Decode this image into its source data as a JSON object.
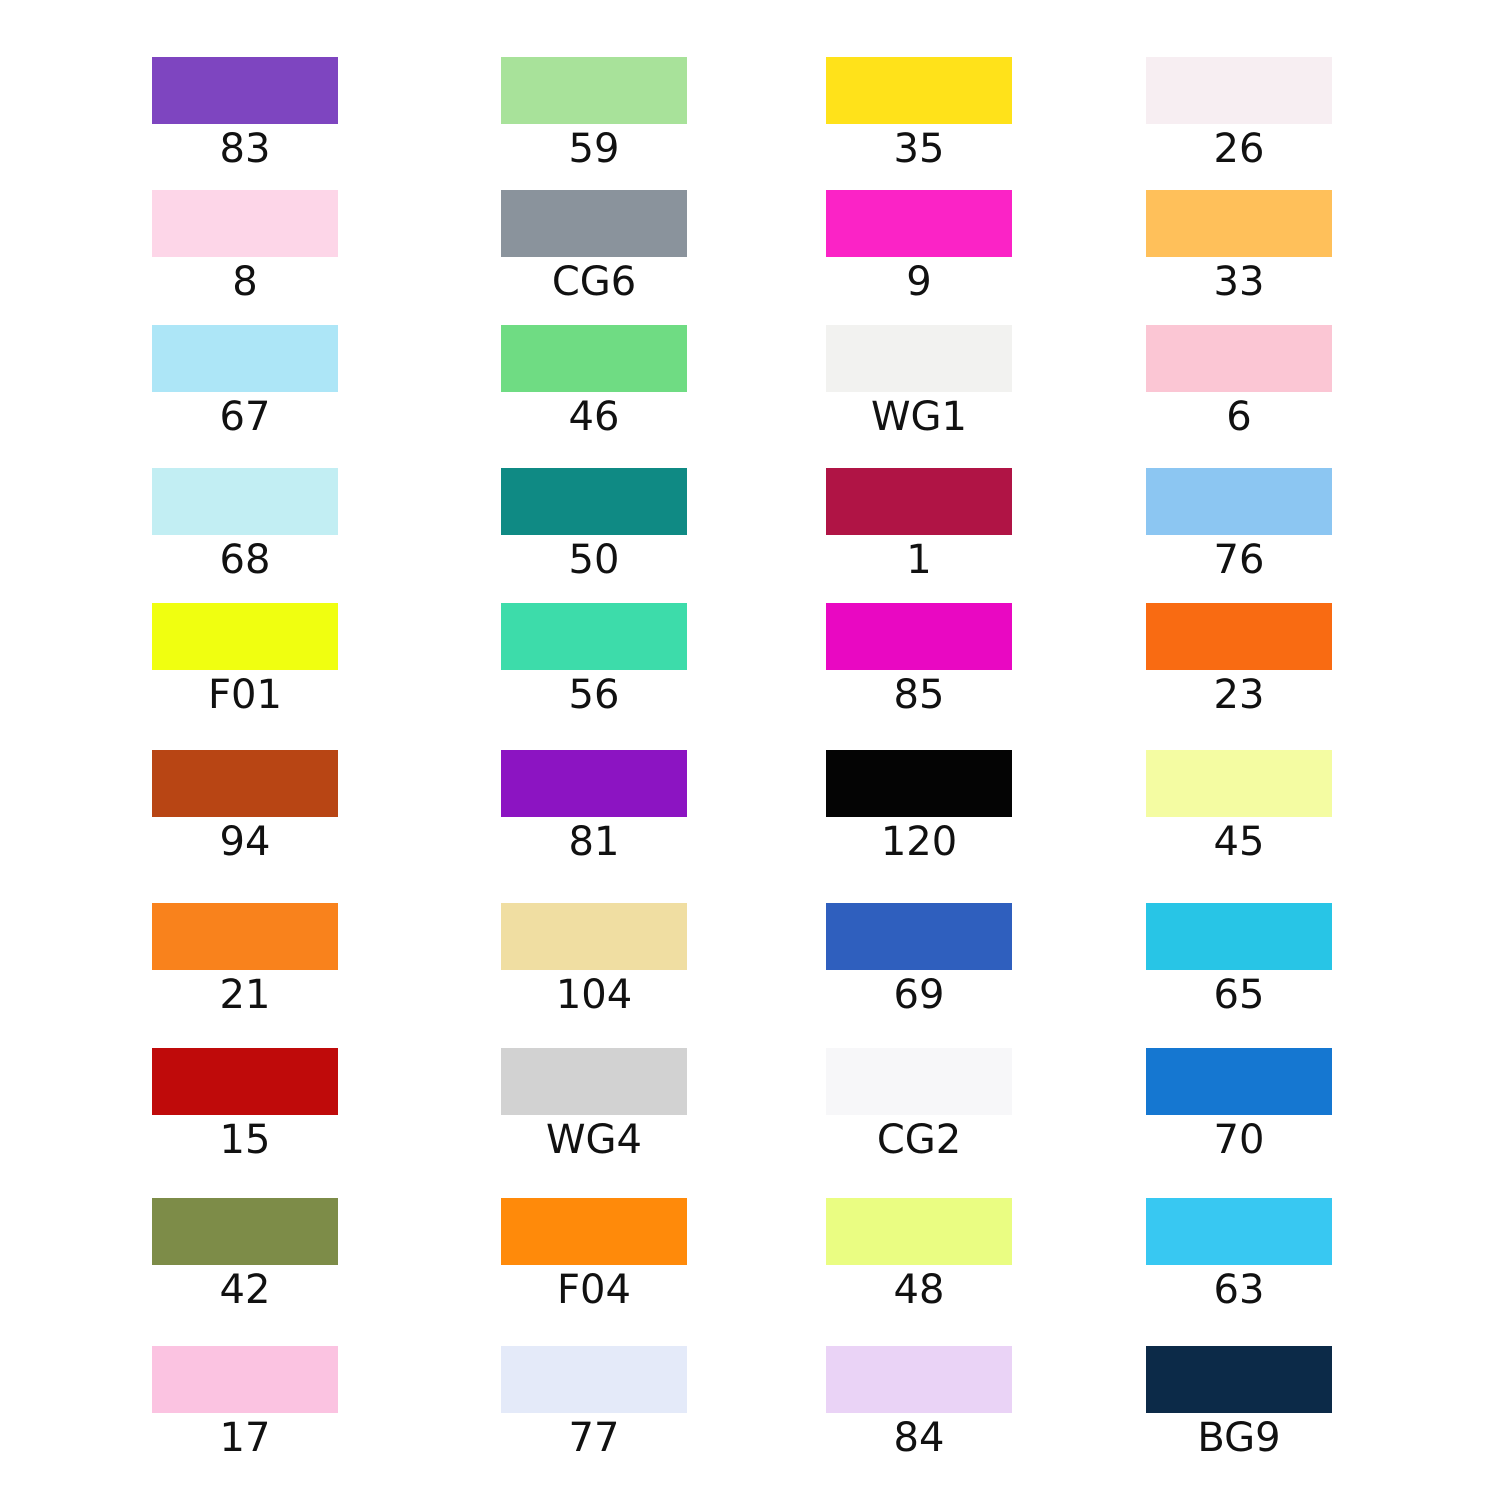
{
  "swatches": {
    "rows": [
      [
        {
          "label": "83",
          "color": "#7e45c0"
        },
        {
          "label": "59",
          "color": "#a8e29a"
        },
        {
          "label": "35",
          "color": "#ffe21a"
        },
        {
          "label": "26",
          "color": "#f7eef2"
        }
      ],
      [
        {
          "label": "8",
          "color": "#fdd6e8"
        },
        {
          "label": "CG6",
          "color": "#8a939c"
        },
        {
          "label": "9",
          "color": "#fb23c6"
        },
        {
          "label": "33",
          "color": "#ffc05a"
        }
      ],
      [
        {
          "label": "67",
          "color": "#ade6f7"
        },
        {
          "label": "46",
          "color": "#6fdc83"
        },
        {
          "label": "WG1",
          "color": "#f2f2f0"
        },
        {
          "label": "6",
          "color": "#fbc6d4"
        }
      ],
      [
        {
          "label": "68",
          "color": "#c2eef3"
        },
        {
          "label": "50",
          "color": "#0f8a84"
        },
        {
          "label": "1",
          "color": "#b01445"
        },
        {
          "label": "76",
          "color": "#8cc6f2"
        }
      ],
      [
        {
          "label": "F01",
          "color": "#f0ff10"
        },
        {
          "label": "56",
          "color": "#3ddcaa"
        },
        {
          "label": "85",
          "color": "#e908c2"
        },
        {
          "label": "23",
          "color": "#f96b12"
        }
      ],
      [
        {
          "label": "94",
          "color": "#b84514"
        },
        {
          "label": "81",
          "color": "#8c14c2"
        },
        {
          "label": "120",
          "color": "#040404"
        },
        {
          "label": "45",
          "color": "#f4fca2"
        }
      ],
      [
        {
          "label": "21",
          "color": "#f9821c"
        },
        {
          "label": "104",
          "color": "#f0dea2"
        },
        {
          "label": "69",
          "color": "#2f5fbe"
        },
        {
          "label": "65",
          "color": "#28c5e6"
        }
      ],
      [
        {
          "label": "15",
          "color": "#bf0a0a"
        },
        {
          "label": "WG4",
          "color": "#d2d2d2"
        },
        {
          "label": "CG2",
          "color": "#f7f7f9"
        },
        {
          "label": "70",
          "color": "#1577d1"
        }
      ],
      [
        {
          "label": "42",
          "color": "#7d8c48"
        },
        {
          "label": "F04",
          "color": "#ff8a0a"
        },
        {
          "label": "48",
          "color": "#eafd82"
        },
        {
          "label": "63",
          "color": "#38c8f2"
        }
      ],
      [
        {
          "label": "17",
          "color": "#fbc3e1"
        },
        {
          "label": "77",
          "color": "#e4eaf9"
        },
        {
          "label": "84",
          "color": "#ead3f6"
        },
        {
          "label": "BG9",
          "color": "#0c2a48"
        }
      ]
    ]
  }
}
